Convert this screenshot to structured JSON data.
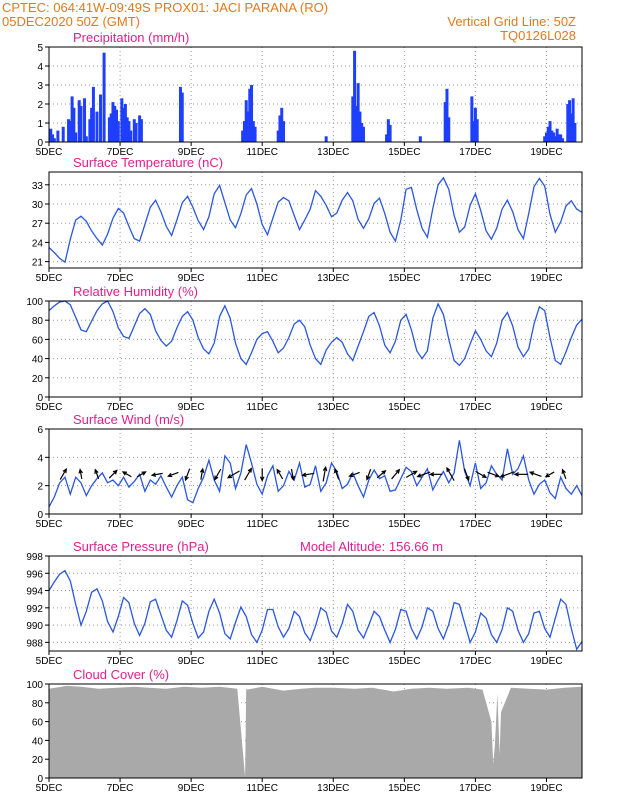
{
  "header": {
    "line1_left": "CPTEC:   064:41W-09:49S   PROX01: JACI PARANA (RO)",
    "line2_left": "05DEC2020 50Z (GMT)",
    "line2_right": "Vertical Grid Line: 50Z",
    "line3_right": "TQ0126L028"
  },
  "chart_data": [
    {
      "type": "bar",
      "title": "Precipitation (mm/h)",
      "color": "#1f3fff",
      "ylim": [
        0,
        5
      ],
      "yticks": [
        0,
        1,
        2,
        3,
        4,
        5
      ],
      "xlim": [
        5.0,
        20.0
      ],
      "xticks": [
        5,
        7,
        9,
        11,
        13,
        15,
        17,
        19
      ],
      "xticklabels": [
        "5DEC",
        "7DEC",
        "9DEC",
        "11DEC",
        "13DEC",
        "15DEC",
        "17DEC",
        "19DEC"
      ],
      "x": [
        5.05,
        5.1,
        5.15,
        5.25,
        5.4,
        5.55,
        5.6,
        5.65,
        5.7,
        5.75,
        5.85,
        5.9,
        6.0,
        6.05,
        6.15,
        6.2,
        6.25,
        6.35,
        6.45,
        6.55,
        6.7,
        6.75,
        6.8,
        6.85,
        6.9,
        6.95,
        7.05,
        7.1,
        7.15,
        7.2,
        7.25,
        7.3,
        7.4,
        7.45,
        7.55,
        7.6,
        8.7,
        8.75,
        10.45,
        10.5,
        10.55,
        10.6,
        10.65,
        10.7,
        10.75,
        10.8,
        11.45,
        11.5,
        11.55,
        11.6,
        12.8,
        13.55,
        13.6,
        13.65,
        13.7,
        13.75,
        13.8,
        13.85,
        14.5,
        14.55,
        14.6,
        15.45,
        16.15,
        16.2,
        16.25,
        16.9,
        16.95,
        17.0,
        17.05,
        18.95,
        19.0,
        19.05,
        19.1,
        19.15,
        19.2,
        19.25,
        19.3,
        19.35,
        19.4,
        19.45,
        19.6,
        19.65,
        19.7,
        19.75,
        19.8
      ],
      "values": [
        0.7,
        0.4,
        0.2,
        0.6,
        0.8,
        1.2,
        1.1,
        2.4,
        1.8,
        0.5,
        2.2,
        1.9,
        2.3,
        0.3,
        1.2,
        1.8,
        2.9,
        1.6,
        2.5,
        4.7,
        1.3,
        1.5,
        2.1,
        1.9,
        1.7,
        1.1,
        2.3,
        1.8,
        2.0,
        1.3,
        1.1,
        0.6,
        1.2,
        1.0,
        1.4,
        1.2,
        2.9,
        2.6,
        0.6,
        1.1,
        2.2,
        1.6,
        2.8,
        3.0,
        1.1,
        0.8,
        0.6,
        1.4,
        1.8,
        1.1,
        0.3,
        2.4,
        4.8,
        1.9,
        3.1,
        1.6,
        1.0,
        0.8,
        0.4,
        1.2,
        0.9,
        0.3,
        2.1,
        2.8,
        1.3,
        2.4,
        1.1,
        1.8,
        1.2,
        0.3,
        0.5,
        0.8,
        1.1,
        0.6,
        0.5,
        0.3,
        0.7,
        0.4,
        0.4,
        0.2,
        2.0,
        2.2,
        1.5,
        2.3,
        1.0
      ]
    },
    {
      "type": "line",
      "title": "Surface Temperature (nC)",
      "color": "#2a56e0",
      "ylim": [
        20,
        35
      ],
      "yticks": [
        21,
        24,
        27,
        30,
        33
      ],
      "xlim": [
        5.0,
        20.0
      ],
      "xticks": [
        5,
        7,
        9,
        11,
        13,
        15,
        17,
        19
      ],
      "xticklabels": [
        "5DEC",
        "7DEC",
        "9DEC",
        "11DEC",
        "13DEC",
        "15DEC",
        "17DEC",
        "19DEC"
      ],
      "x": [
        5.0,
        5.15,
        5.3,
        5.45,
        5.6,
        5.75,
        5.9,
        6.05,
        6.2,
        6.35,
        6.5,
        6.65,
        6.8,
        6.95,
        7.1,
        7.25,
        7.4,
        7.55,
        7.7,
        7.85,
        8.0,
        8.15,
        8.3,
        8.45,
        8.6,
        8.75,
        8.9,
        9.05,
        9.2,
        9.35,
        9.5,
        9.65,
        9.8,
        9.95,
        10.1,
        10.25,
        10.4,
        10.55,
        10.7,
        10.85,
        11.0,
        11.15,
        11.3,
        11.45,
        11.6,
        11.75,
        11.9,
        12.05,
        12.2,
        12.35,
        12.5,
        12.65,
        12.8,
        12.95,
        13.1,
        13.25,
        13.4,
        13.55,
        13.7,
        13.85,
        14.0,
        14.15,
        14.3,
        14.45,
        14.6,
        14.75,
        14.9,
        15.05,
        15.2,
        15.35,
        15.5,
        15.65,
        15.8,
        15.95,
        16.1,
        16.25,
        16.4,
        16.55,
        16.7,
        16.85,
        17.0,
        17.15,
        17.3,
        17.45,
        17.6,
        17.75,
        17.9,
        18.05,
        18.2,
        18.35,
        18.5,
        18.65,
        18.8,
        18.95,
        19.1,
        19.25,
        19.4,
        19.55,
        19.7,
        19.85,
        20.0
      ],
      "values": [
        23.2,
        22.4,
        21.5,
        20.9,
        24.5,
        27.5,
        28.1,
        27.3,
        25.8,
        24.6,
        23.6,
        25.3,
        27.8,
        29.3,
        28.6,
        26.5,
        24.6,
        24.2,
        26.8,
        29.5,
        30.6,
        28.8,
        26.5,
        25.1,
        27.5,
        30.2,
        31.2,
        29.5,
        27.4,
        26.0,
        28.0,
        31.6,
        32.9,
        30.2,
        27.5,
        26.3,
        28.5,
        31.4,
        32.4,
        30.0,
        26.8,
        25.2,
        27.8,
        30.3,
        31.0,
        30.5,
        28.2,
        26.0,
        27.5,
        29.2,
        32.1,
        31.2,
        29.8,
        28.0,
        28.6,
        30.6,
        31.8,
        30.5,
        27.6,
        26.2,
        27.7,
        30.1,
        30.9,
        28.5,
        25.6,
        24.2,
        27.5,
        32.3,
        32.6,
        29.1,
        26.2,
        24.8,
        29.3,
        33.0,
        34.1,
        32.3,
        28.2,
        25.6,
        26.4,
        29.8,
        31.6,
        29.0,
        25.8,
        24.5,
        26.2,
        29.2,
        30.6,
        28.8,
        26.0,
        24.6,
        28.5,
        32.7,
        34.0,
        32.8,
        28.4,
        25.6,
        27.2,
        29.7,
        30.5,
        29.2,
        28.7
      ]
    },
    {
      "type": "line",
      "title": "Relative Humidity (%)",
      "color": "#2a56e0",
      "ylim": [
        0,
        100
      ],
      "yticks": [
        0,
        20,
        40,
        60,
        80,
        100
      ],
      "xlim": [
        5.0,
        20.0
      ],
      "xticks": [
        5,
        7,
        9,
        11,
        13,
        15,
        17,
        19
      ],
      "xticklabels": [
        "5DEC",
        "7DEC",
        "9DEC",
        "11DEC",
        "13DEC",
        "15DEC",
        "17DEC",
        "19DEC"
      ],
      "x": [
        5.0,
        5.15,
        5.3,
        5.45,
        5.6,
        5.75,
        5.9,
        6.05,
        6.2,
        6.35,
        6.5,
        6.65,
        6.8,
        6.95,
        7.1,
        7.25,
        7.4,
        7.55,
        7.7,
        7.85,
        8.0,
        8.15,
        8.3,
        8.45,
        8.6,
        8.75,
        8.9,
        9.05,
        9.2,
        9.35,
        9.5,
        9.65,
        9.8,
        9.95,
        10.1,
        10.25,
        10.4,
        10.55,
        10.7,
        10.85,
        11.0,
        11.15,
        11.3,
        11.45,
        11.6,
        11.75,
        11.9,
        12.05,
        12.2,
        12.35,
        12.5,
        12.65,
        12.8,
        12.95,
        13.1,
        13.25,
        13.4,
        13.55,
        13.7,
        13.85,
        14.0,
        14.15,
        14.3,
        14.45,
        14.6,
        14.75,
        14.9,
        15.05,
        15.2,
        15.35,
        15.5,
        15.65,
        15.8,
        15.95,
        16.1,
        16.25,
        16.4,
        16.55,
        16.7,
        16.85,
        17.0,
        17.15,
        17.3,
        17.45,
        17.6,
        17.75,
        17.9,
        18.05,
        18.2,
        18.35,
        18.5,
        18.65,
        18.8,
        18.95,
        19.1,
        19.25,
        19.4,
        19.55,
        19.7,
        19.85,
        20.0
      ],
      "values": [
        90,
        95,
        99,
        100,
        96,
        83,
        70,
        68,
        79,
        90,
        97,
        100,
        89,
        72,
        63,
        61,
        74,
        87,
        92,
        86,
        69,
        59,
        53,
        58,
        72,
        84,
        89,
        80,
        62,
        50,
        45,
        56,
        84,
        95,
        82,
        56,
        40,
        34,
        46,
        60,
        66,
        68,
        58,
        46,
        51,
        62,
        76,
        80,
        73,
        54,
        40,
        34,
        49,
        57,
        62,
        57,
        45,
        38,
        53,
        68,
        84,
        88,
        74,
        54,
        46,
        58,
        80,
        86,
        70,
        48,
        40,
        48,
        82,
        97,
        86,
        60,
        38,
        33,
        40,
        55,
        69,
        60,
        48,
        42,
        56,
        80,
        88,
        74,
        52,
        42,
        50,
        76,
        94,
        90,
        62,
        38,
        34,
        47,
        62,
        75,
        81
      ]
    },
    {
      "type": "line",
      "title": "Surface Wind (m/s)",
      "color": "#2a56e0",
      "ylim": [
        0,
        6
      ],
      "yticks": [
        0,
        2,
        4,
        6
      ],
      "xlim": [
        5.0,
        20.0
      ],
      "xticks": [
        5,
        7,
        9,
        11,
        13,
        15,
        17,
        19
      ],
      "xticklabels": [
        "5DEC",
        "7DEC",
        "9DEC",
        "11DEC",
        "13DEC",
        "15DEC",
        "17DEC",
        "19DEC"
      ],
      "x": [
        5.0,
        5.15,
        5.3,
        5.45,
        5.6,
        5.75,
        5.9,
        6.05,
        6.2,
        6.35,
        6.5,
        6.65,
        6.8,
        6.95,
        7.1,
        7.25,
        7.4,
        7.55,
        7.7,
        7.85,
        8.0,
        8.15,
        8.3,
        8.45,
        8.6,
        8.75,
        8.9,
        9.05,
        9.2,
        9.35,
        9.5,
        9.65,
        9.8,
        9.95,
        10.1,
        10.25,
        10.4,
        10.55,
        10.7,
        10.85,
        11.0,
        11.15,
        11.3,
        11.45,
        11.6,
        11.75,
        11.9,
        12.05,
        12.2,
        12.35,
        12.5,
        12.65,
        12.8,
        12.95,
        13.1,
        13.25,
        13.4,
        13.55,
        13.7,
        13.85,
        14.0,
        14.15,
        14.3,
        14.45,
        14.6,
        14.75,
        14.9,
        15.05,
        15.2,
        15.35,
        15.5,
        15.65,
        15.8,
        15.95,
        16.1,
        16.25,
        16.4,
        16.55,
        16.7,
        16.85,
        17.0,
        17.15,
        17.3,
        17.45,
        17.6,
        17.75,
        17.9,
        18.05,
        18.2,
        18.35,
        18.5,
        18.65,
        18.8,
        18.95,
        19.1,
        19.25,
        19.4,
        19.55,
        19.7,
        19.85,
        20.0
      ],
      "values": [
        0.5,
        1.2,
        2.2,
        2.6,
        1.4,
        2.6,
        2.2,
        1.3,
        2.0,
        2.5,
        2.9,
        2.2,
        2.4,
        2.0,
        2.6,
        1.9,
        2.3,
        2.8,
        1.6,
        2.4,
        2.1,
        2.7,
        1.9,
        1.2,
        2.0,
        2.6,
        1.0,
        0.8,
        1.8,
        2.6,
        3.8,
        2.4,
        1.6,
        4.1,
        3.6,
        1.8,
        2.9,
        4.9,
        3.6,
        2.1,
        1.4,
        2.7,
        3.4,
        1.6,
        2.0,
        3.0,
        2.4,
        3.6,
        1.9,
        2.1,
        3.4,
        1.6,
        2.2,
        3.6,
        3.0,
        1.8,
        2.1,
        2.9,
        2.0,
        1.2,
        2.4,
        3.1,
        2.5,
        2.7,
        1.6,
        1.7,
        2.5,
        3.3,
        3.0,
        2.0,
        2.6,
        3.2,
        1.7,
        2.4,
        3.0,
        2.2,
        2.9,
        5.2,
        3.0,
        2.0,
        3.6,
        1.8,
        2.2,
        3.4,
        2.8,
        2.4,
        4.6,
        2.8,
        3.2,
        4.1,
        2.4,
        1.4,
        2.1,
        2.4,
        1.5,
        1.1,
        2.6,
        1.8,
        1.4,
        2.0,
        1.3
      ]
    },
    {
      "type": "line",
      "title": "Surface Pressure (hPa)",
      "subtitle": "Model Altitude: 156.66 m",
      "color": "#2a56e0",
      "ylim": [
        987,
        998
      ],
      "yticks": [
        988,
        990,
        992,
        994,
        996,
        998
      ],
      "xlim": [
        5.0,
        20.0
      ],
      "xticks": [
        5,
        7,
        9,
        11,
        13,
        15,
        17,
        19
      ],
      "xticklabels": [
        "5DEC",
        "7DEC",
        "9DEC",
        "11DEC",
        "13DEC",
        "15DEC",
        "17DEC",
        "19DEC"
      ],
      "x": [
        5.0,
        5.15,
        5.3,
        5.45,
        5.6,
        5.75,
        5.9,
        6.05,
        6.2,
        6.35,
        6.5,
        6.65,
        6.8,
        6.95,
        7.1,
        7.25,
        7.4,
        7.55,
        7.7,
        7.85,
        8.0,
        8.15,
        8.3,
        8.45,
        8.6,
        8.75,
        8.9,
        9.05,
        9.2,
        9.35,
        9.5,
        9.65,
        9.8,
        9.95,
        10.1,
        10.25,
        10.4,
        10.55,
        10.7,
        10.85,
        11.0,
        11.15,
        11.3,
        11.45,
        11.6,
        11.75,
        11.9,
        12.05,
        12.2,
        12.35,
        12.5,
        12.65,
        12.8,
        12.95,
        13.1,
        13.25,
        13.4,
        13.55,
        13.7,
        13.85,
        14.0,
        14.15,
        14.3,
        14.45,
        14.6,
        14.75,
        14.9,
        15.05,
        15.2,
        15.35,
        15.5,
        15.65,
        15.8,
        15.95,
        16.1,
        16.25,
        16.4,
        16.55,
        16.7,
        16.85,
        17.0,
        17.15,
        17.3,
        17.45,
        17.6,
        17.75,
        17.9,
        18.05,
        18.2,
        18.35,
        18.5,
        18.65,
        18.8,
        18.95,
        19.1,
        19.25,
        19.4,
        19.55,
        19.7,
        19.85,
        20.0
      ],
      "values": [
        994.0,
        995.0,
        995.9,
        996.3,
        995.1,
        992.4,
        990.0,
        991.6,
        993.8,
        994.2,
        992.8,
        990.4,
        989.2,
        991.0,
        993.2,
        992.6,
        990.2,
        988.8,
        990.2,
        992.7,
        993.0,
        991.2,
        989.4,
        988.6,
        990.5,
        992.8,
        992.3,
        990.2,
        988.5,
        989.2,
        991.6,
        993.0,
        991.4,
        989.0,
        988.4,
        990.3,
        992.1,
        991.0,
        988.9,
        988.0,
        989.4,
        991.8,
        991.8,
        989.8,
        988.6,
        989.6,
        991.6,
        991.0,
        989.1,
        988.2,
        989.9,
        992.0,
        991.5,
        989.3,
        988.6,
        990.2,
        992.4,
        991.6,
        989.4,
        988.5,
        990.0,
        991.6,
        991.0,
        989.4,
        988.0,
        989.5,
        991.8,
        991.6,
        989.6,
        988.4,
        989.8,
        992.0,
        991.6,
        989.6,
        988.4,
        990.1,
        992.6,
        992.4,
        990.2,
        988.0,
        989.2,
        991.4,
        990.8,
        988.9,
        988.0,
        989.5,
        992.0,
        991.6,
        989.4,
        988.0,
        989.0,
        991.4,
        991.6,
        989.6,
        988.6,
        990.8,
        993.0,
        992.4,
        989.6,
        987.2,
        988.1
      ]
    },
    {
      "type": "area",
      "title": "Cloud Cover (%)",
      "color": "#a9a9a9",
      "ylim": [
        0,
        100
      ],
      "yticks": [
        0,
        20,
        40,
        60,
        80,
        100
      ],
      "xlim": [
        5.0,
        20.0
      ],
      "xticks": [
        5,
        7,
        9,
        11,
        13,
        15,
        17,
        19
      ],
      "xticklabels": [
        "5DEC",
        "7DEC",
        "9DEC",
        "11DEC",
        "13DEC",
        "15DEC",
        "17DEC",
        "19DEC"
      ],
      "x": [
        5.0,
        5.5,
        5.9,
        6.4,
        6.9,
        7.4,
        7.8,
        8.3,
        8.8,
        9.3,
        9.8,
        10.3,
        10.52,
        10.55,
        10.58,
        11.0,
        11.6,
        12.1,
        12.5,
        13.0,
        13.6,
        14.1,
        14.7,
        15.2,
        15.7,
        16.2,
        16.8,
        17.2,
        17.45,
        17.5,
        17.55,
        17.62,
        17.68,
        17.72,
        18.0,
        18.5,
        19.0,
        19.5,
        20.0
      ],
      "values": [
        95,
        98,
        97,
        95,
        96,
        97,
        96,
        95,
        97,
        96,
        97,
        95,
        1,
        95,
        94,
        97,
        93,
        95,
        96,
        96,
        95,
        96,
        92,
        95,
        96,
        95,
        96,
        94,
        60,
        15,
        35,
        90,
        25,
        70,
        96,
        95,
        94,
        96,
        97
      ]
    }
  ],
  "wind_arrows": {
    "color": "#000000",
    "x": [
      5.4,
      5.9,
      6.35,
      6.8,
      7.2,
      7.6,
      8.05,
      8.5,
      8.9,
      9.3,
      9.75,
      10.2,
      10.6,
      11.0,
      11.5,
      11.85,
      12.3,
      12.75,
      13.1,
      13.6,
      14.0,
      14.35,
      14.75,
      15.2,
      15.55,
      15.9,
      16.3,
      16.75,
      17.15,
      17.5,
      17.9,
      18.3,
      18.7,
      19.1,
      19.5
    ],
    "angle_deg": [
      60,
      100,
      110,
      45,
      150,
      30,
      190,
      200,
      250,
      80,
      240,
      210,
      60,
      270,
      120,
      280,
      190,
      80,
      110,
      200,
      250,
      40,
      50,
      30,
      200,
      180,
      120,
      290,
      330,
      340,
      200,
      180,
      160,
      210,
      110
    ],
    "length": [
      1.0,
      0.8,
      0.8,
      0.9,
      0.8,
      0.8,
      0.9,
      0.9,
      1.0,
      0.9,
      1.0,
      1.1,
      1.1,
      1.0,
      0.9,
      0.9,
      1.0,
      1.2,
      0.9,
      0.9,
      0.9,
      0.9,
      1.0,
      1.0,
      1.1,
      1.0,
      1.2,
      1.0,
      1.0,
      1.0,
      1.2,
      1.1,
      1.0,
      0.8,
      0.8
    ]
  }
}
